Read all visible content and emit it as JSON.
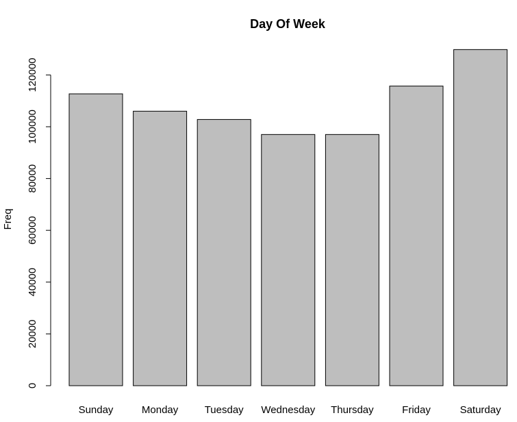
{
  "chart_data": {
    "type": "bar",
    "title": "Day Of Week",
    "xlabel": "",
    "ylabel": "Freq",
    "categories": [
      "Sunday",
      "Monday",
      "Tuesday",
      "Wednesday",
      "Thursday",
      "Friday",
      "Saturday"
    ],
    "values": [
      112700,
      106000,
      102800,
      97000,
      97000,
      115700,
      129800
    ],
    "yticks": [
      0,
      20000,
      40000,
      60000,
      80000,
      100000,
      120000
    ],
    "ytick_labels": [
      "0",
      "20000",
      "40000",
      "60000",
      "80000",
      "100000",
      "120000"
    ],
    "bar_color": "#bebebe",
    "grid": false,
    "legend": "none"
  }
}
